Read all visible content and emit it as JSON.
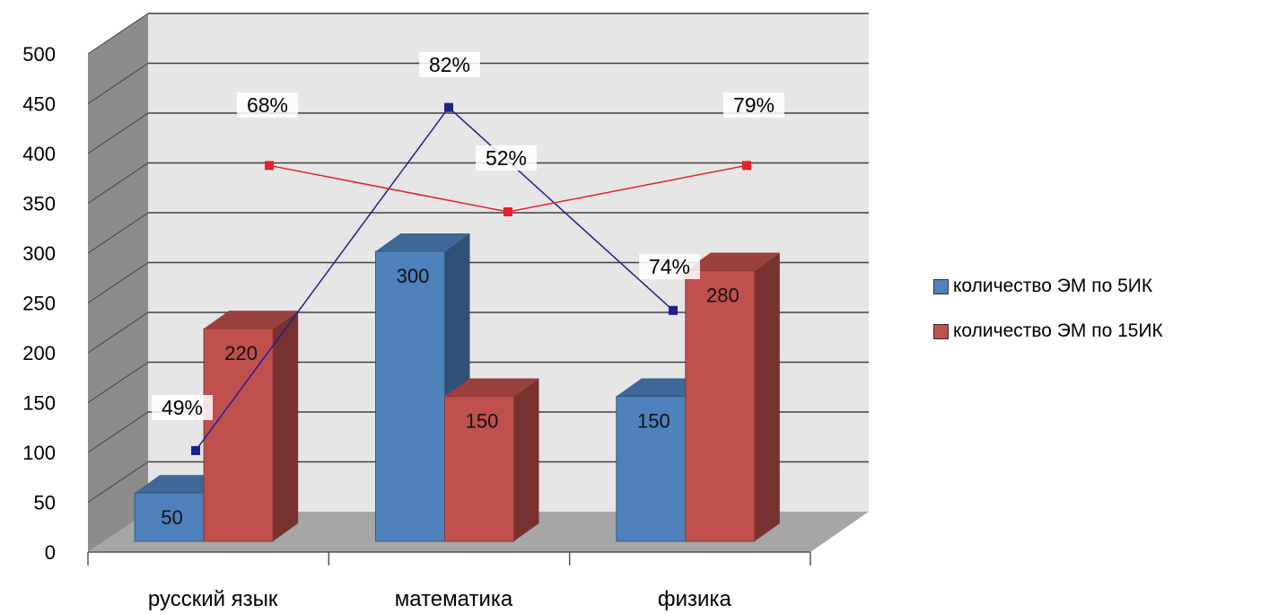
{
  "chart_data": {
    "type": "bar",
    "style": "3d-clustered-column-with-line-overlay",
    "categories": [
      "русский язык",
      "математика",
      "физика"
    ],
    "series": [
      {
        "name": "количество ЭМ по 5ИК",
        "values": [
          50,
          300,
          150
        ],
        "color": "#4f81bd"
      },
      {
        "name": "количество ЭМ по 15ИК",
        "values": [
          220,
          150,
          280
        ],
        "color": "#c0504d"
      }
    ],
    "lines": [
      {
        "color": "#1f1f8f",
        "values": [
          105,
          460,
          250
        ],
        "labels": [
          "49%",
          "82%",
          "74%"
        ]
      },
      {
        "color": "#e8202a",
        "values": [
          400,
          352,
          400
        ],
        "labels": [
          "68%",
          "52%",
          "79%"
        ]
      }
    ],
    "ylim": [
      0,
      500
    ],
    "yticks": [
      0,
      50,
      100,
      150,
      200,
      250,
      300,
      350,
      400,
      450,
      500
    ],
    "xlabel": "",
    "ylabel": "",
    "grid": true,
    "legend_position": "right",
    "colors": {
      "wall": "#e6e6e6",
      "side_wall": "#8c8c8c",
      "floor": "#a6a6a6",
      "grid": "#404040"
    }
  }
}
